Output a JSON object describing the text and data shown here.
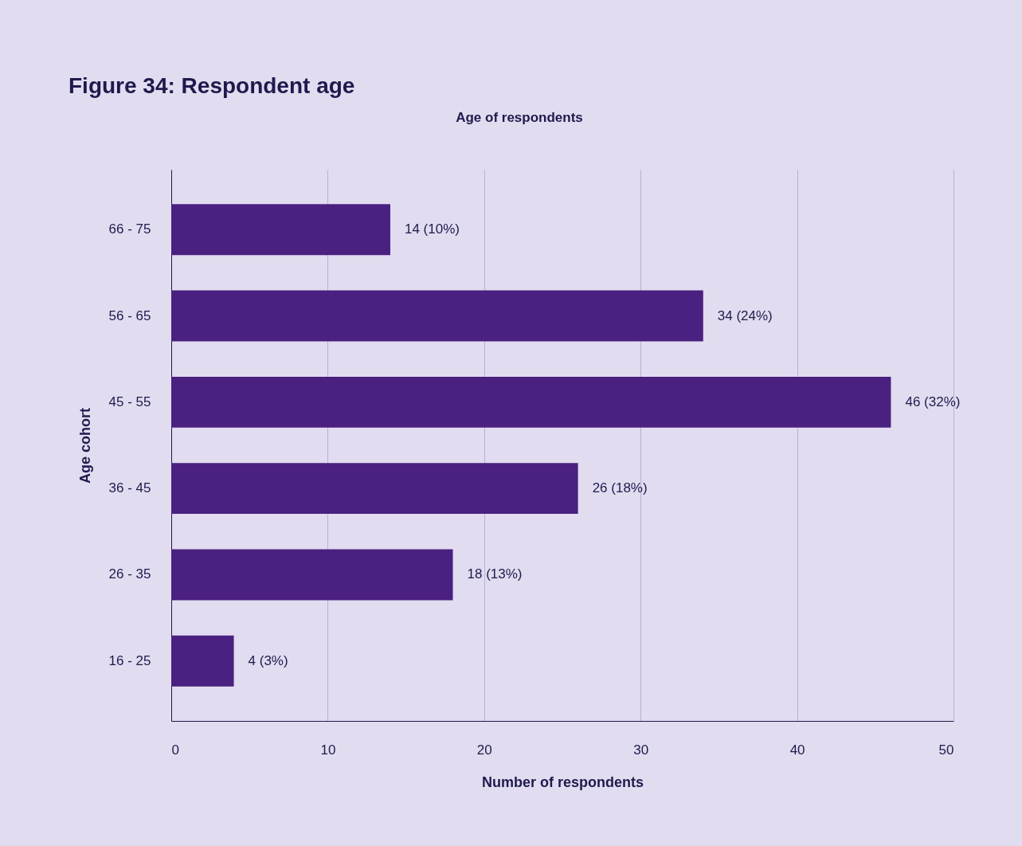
{
  "chart_data": {
    "type": "bar",
    "orientation": "horizontal",
    "title": "Figure 34: Respondent age",
    "subtitle": "Age of respondents",
    "xlabel": "Number of respondents",
    "ylabel": "Age cohort",
    "categories": [
      "66 - 75",
      "56 - 65",
      "45 - 55",
      "36 - 45",
      "26 - 35",
      "16 - 25"
    ],
    "values": [
      14,
      34,
      46,
      26,
      18,
      4
    ],
    "value_labels": [
      "14 (10%)",
      "34 (24%)",
      "46 (32%)",
      "26 (18%)",
      "18 (13%)",
      "4 (3%)"
    ],
    "color": "#4a2080",
    "xlim": [
      0,
      50
    ],
    "xticks": [
      0,
      10,
      20,
      30,
      40,
      50
    ],
    "grid": "x"
  }
}
